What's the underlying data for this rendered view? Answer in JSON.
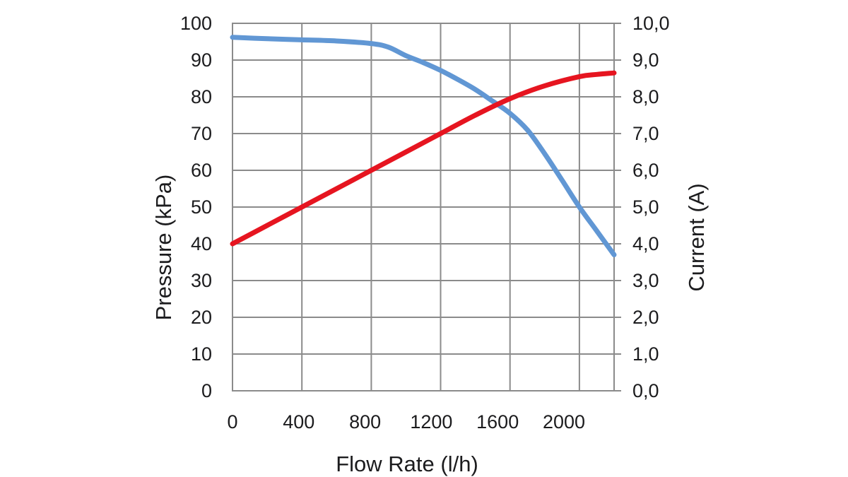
{
  "chart_data": {
    "type": "line",
    "title": "",
    "grid": {
      "show": true,
      "color": "#8b8b8b"
    },
    "legend": "none",
    "text_color": "#1c1c1e",
    "x_axis": {
      "label": "Flow Rate (l/h)",
      "min": 0,
      "max": 2200,
      "tick_values": [
        0,
        400,
        800,
        1200,
        1600,
        2000
      ],
      "tick_labels": [
        "0",
        "400",
        "800",
        "1200",
        "1600",
        "2000"
      ]
    },
    "y_axis_left": {
      "label": "Pressure (kPa)",
      "min": 0,
      "max": 100,
      "step": 10,
      "tick_values": [
        100,
        90,
        80,
        70,
        60,
        50,
        40,
        30,
        20,
        10,
        0
      ],
      "tick_labels": [
        "100",
        "90",
        "80",
        "70",
        "60",
        "50",
        "40",
        "30",
        "20",
        "10",
        "0"
      ]
    },
    "y_axis_right": {
      "label": "Current (A)",
      "min": 0,
      "max": 10,
      "step": 1,
      "tick_values": [
        10,
        9,
        8,
        7,
        6,
        5,
        4,
        3,
        2,
        1,
        0
      ],
      "tick_labels": [
        "10,0",
        "9,0",
        "8,0",
        "7,0",
        "6,0",
        "5,0",
        "4,0",
        "3,0",
        "2,0",
        "1,0",
        "0,0"
      ]
    },
    "series": [
      {
        "name": "Pressure",
        "axis": "left",
        "color": "#6197D4",
        "points": [
          [
            0,
            96.2
          ],
          [
            200,
            95.8
          ],
          [
            400,
            95.5
          ],
          [
            600,
            95.2
          ],
          [
            800,
            94.5
          ],
          [
            900,
            93.5
          ],
          [
            1000,
            91.2
          ],
          [
            1100,
            89.3
          ],
          [
            1200,
            87.2
          ],
          [
            1300,
            84.7
          ],
          [
            1400,
            82.0
          ],
          [
            1500,
            78.8
          ],
          [
            1600,
            75.5
          ],
          [
            1700,
            71.0
          ],
          [
            1800,
            64.5
          ],
          [
            1900,
            57.3
          ],
          [
            2000,
            50.0
          ],
          [
            2100,
            43.5
          ],
          [
            2200,
            37.0
          ]
        ]
      },
      {
        "name": "Current",
        "axis": "right",
        "color": "#E61520",
        "points": [
          [
            0,
            4.0
          ],
          [
            200,
            4.5
          ],
          [
            400,
            5.0
          ],
          [
            600,
            5.5
          ],
          [
            800,
            6.0
          ],
          [
            1000,
            6.5
          ],
          [
            1200,
            7.0
          ],
          [
            1400,
            7.5
          ],
          [
            1600,
            7.95
          ],
          [
            1800,
            8.3
          ],
          [
            2000,
            8.55
          ],
          [
            2100,
            8.61
          ],
          [
            2200,
            8.65
          ]
        ]
      }
    ]
  }
}
